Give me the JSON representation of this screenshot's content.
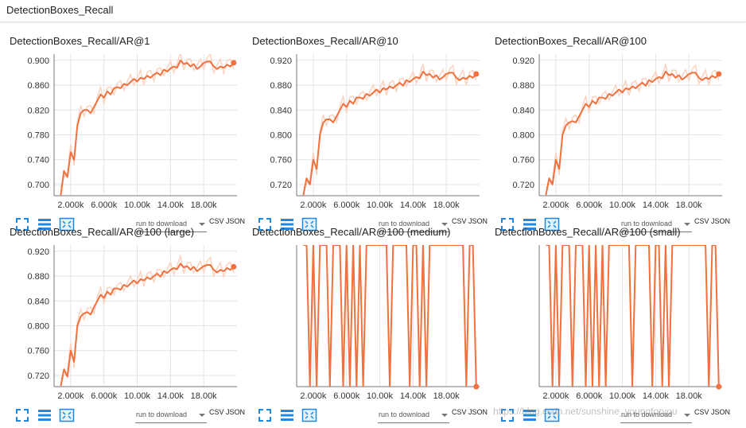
{
  "page": {
    "title": "DetectionBoxes_Recall"
  },
  "toolbar": {
    "run_select_label": "run to download",
    "csv_label": "CSV",
    "json_label": "JSON",
    "icons": [
      "fullscreen-icon",
      "toggle-log-icon",
      "fit-domain-icon"
    ]
  },
  "colors": {
    "line": "#f0713d",
    "smooth_line": "#fbd3c2",
    "grid": "#e3e3e3",
    "axis": "#777777"
  },
  "watermark": "https://blog.csdn.net/sunshine_youngforyou",
  "cards": [
    {
      "title": "DetectionBoxes_Recall/AR@1",
      "yticks": [
        "0.700",
        "0.740",
        "0.780",
        "0.820",
        "0.860",
        "0.900"
      ],
      "xticks": [
        "2.000k",
        "6.000k",
        "10.00k",
        "14.00k",
        "18.00k"
      ]
    },
    {
      "title": "DetectionBoxes_Recall/AR@10",
      "yticks": [
        "0.720",
        "0.760",
        "0.800",
        "0.840",
        "0.880",
        "0.920"
      ],
      "xticks": [
        "2.000k",
        "6.000k",
        "10.00k",
        "14.00k",
        "18.00k"
      ]
    },
    {
      "title": "DetectionBoxes_Recall/AR@100",
      "yticks": [
        "0.720",
        "0.760",
        "0.800",
        "0.840",
        "0.880",
        "0.920"
      ],
      "xticks": [
        "2.000k",
        "6.000k",
        "10.00k",
        "14.00k",
        "18.00k"
      ]
    },
    {
      "title": "DetectionBoxes_Recall/AR@100 (large)",
      "yticks": [
        "0.720",
        "0.760",
        "0.800",
        "0.840",
        "0.880",
        "0.920"
      ],
      "xticks": [
        "2.000k",
        "6.000k",
        "10.00k",
        "14.00k",
        "18.00k"
      ]
    },
    {
      "title": "DetectionBoxes_Recall/AR@100 (medium)",
      "yticks": [],
      "xticks": [
        "2.000k",
        "6.000k",
        "10.00k",
        "14.00k",
        "18.00k"
      ]
    },
    {
      "title": "DetectionBoxes_Recall/AR@100 (small)",
      "yticks": [],
      "xticks": [
        "2.000k",
        "6.000k",
        "10.00k",
        "14.00k",
        "18.00k"
      ]
    }
  ],
  "chart_data": [
    {
      "type": "line",
      "title": "DetectionBoxes_Recall/AR@1",
      "xlim": [
        0,
        22000
      ],
      "ylim": [
        0.682,
        0.91
      ],
      "x": [
        800,
        1200,
        1600,
        2000,
        2400,
        2800,
        3200,
        3600,
        4000,
        4400,
        4800,
        5200,
        5600,
        6000,
        6400,
        6800,
        7200,
        7600,
        8000,
        8400,
        8800,
        9200,
        9600,
        10000,
        10400,
        10800,
        11200,
        11600,
        12000,
        12400,
        12800,
        13200,
        13600,
        14000,
        14400,
        14800,
        15200,
        15600,
        16000,
        16400,
        16800,
        17200,
        17600,
        18000,
        18400,
        18800,
        19200,
        19600,
        20000,
        20400,
        20800,
        21200,
        21600
      ],
      "y": [
        0.683,
        0.722,
        0.712,
        0.752,
        0.74,
        0.795,
        0.815,
        0.82,
        0.82,
        0.815,
        0.825,
        0.835,
        0.845,
        0.84,
        0.85,
        0.845,
        0.855,
        0.857,
        0.855,
        0.862,
        0.86,
        0.865,
        0.87,
        0.866,
        0.872,
        0.87,
        0.875,
        0.872,
        0.877,
        0.88,
        0.876,
        0.885,
        0.882,
        0.887,
        0.89,
        0.888,
        0.9,
        0.894,
        0.896,
        0.89,
        0.894,
        0.886,
        0.89,
        0.896,
        0.898,
        0.898,
        0.89,
        0.886,
        0.89,
        0.888,
        0.893,
        0.89,
        0.896
      ]
    },
    {
      "type": "line",
      "title": "DetectionBoxes_Recall/AR@10",
      "xlim": [
        0,
        22000
      ],
      "ylim": [
        0.702,
        0.93
      ],
      "x": [
        800,
        1200,
        1600,
        2000,
        2400,
        2800,
        3200,
        3600,
        4000,
        4400,
        4800,
        5200,
        5600,
        6000,
        6400,
        6800,
        7200,
        7600,
        8000,
        8400,
        8800,
        9200,
        9600,
        10000,
        10400,
        10800,
        11200,
        11600,
        12000,
        12400,
        12800,
        13200,
        13600,
        14000,
        14400,
        14800,
        15200,
        15600,
        16000,
        16400,
        16800,
        17200,
        17600,
        18000,
        18400,
        18800,
        19200,
        19600,
        20000,
        20400,
        20800,
        21200,
        21600
      ],
      "y": [
        0.703,
        0.73,
        0.72,
        0.76,
        0.745,
        0.8,
        0.82,
        0.825,
        0.825,
        0.82,
        0.83,
        0.84,
        0.85,
        0.845,
        0.855,
        0.85,
        0.86,
        0.86,
        0.858,
        0.866,
        0.863,
        0.868,
        0.873,
        0.868,
        0.875,
        0.873,
        0.878,
        0.875,
        0.88,
        0.884,
        0.879,
        0.888,
        0.885,
        0.89,
        0.893,
        0.891,
        0.902,
        0.896,
        0.898,
        0.892,
        0.896,
        0.889,
        0.893,
        0.898,
        0.9,
        0.9,
        0.892,
        0.888,
        0.892,
        0.89,
        0.895,
        0.892,
        0.898
      ]
    },
    {
      "type": "line",
      "title": "DetectionBoxes_Recall/AR@100",
      "xlim": [
        0,
        22000
      ],
      "ylim": [
        0.702,
        0.93
      ],
      "x": [
        800,
        1200,
        1600,
        2000,
        2400,
        2800,
        3200,
        3600,
        4000,
        4400,
        4800,
        5200,
        5600,
        6000,
        6400,
        6800,
        7200,
        7600,
        8000,
        8400,
        8800,
        9200,
        9600,
        10000,
        10400,
        10800,
        11200,
        11600,
        12000,
        12400,
        12800,
        13200,
        13600,
        14000,
        14400,
        14800,
        15200,
        15600,
        16000,
        16400,
        16800,
        17200,
        17600,
        18000,
        18400,
        18800,
        19200,
        19600,
        20000,
        20400,
        20800,
        21200,
        21600
      ],
      "y": [
        0.703,
        0.73,
        0.72,
        0.76,
        0.745,
        0.8,
        0.815,
        0.82,
        0.822,
        0.82,
        0.83,
        0.84,
        0.85,
        0.845,
        0.855,
        0.85,
        0.86,
        0.86,
        0.858,
        0.866,
        0.863,
        0.868,
        0.873,
        0.868,
        0.875,
        0.873,
        0.878,
        0.875,
        0.88,
        0.884,
        0.879,
        0.888,
        0.885,
        0.89,
        0.893,
        0.891,
        0.902,
        0.896,
        0.898,
        0.892,
        0.896,
        0.889,
        0.893,
        0.898,
        0.9,
        0.9,
        0.892,
        0.888,
        0.892,
        0.89,
        0.895,
        0.892,
        0.898
      ]
    },
    {
      "type": "line",
      "title": "DetectionBoxes_Recall/AR@100 (large)",
      "xlim": [
        0,
        22000
      ],
      "ylim": [
        0.702,
        0.93
      ],
      "x": [
        800,
        1200,
        1600,
        2000,
        2400,
        2800,
        3200,
        3600,
        4000,
        4400,
        4800,
        5200,
        5600,
        6000,
        6400,
        6800,
        7200,
        7600,
        8000,
        8400,
        8800,
        9200,
        9600,
        10000,
        10400,
        10800,
        11200,
        11600,
        12000,
        12400,
        12800,
        13200,
        13600,
        14000,
        14400,
        14800,
        15200,
        15600,
        16000,
        16400,
        16800,
        17200,
        17600,
        18000,
        18400,
        18800,
        19200,
        19600,
        20000,
        20400,
        20800,
        21200,
        21600
      ],
      "y": [
        0.703,
        0.73,
        0.718,
        0.76,
        0.742,
        0.8,
        0.815,
        0.82,
        0.822,
        0.818,
        0.83,
        0.84,
        0.85,
        0.845,
        0.855,
        0.85,
        0.86,
        0.86,
        0.858,
        0.866,
        0.863,
        0.868,
        0.873,
        0.868,
        0.875,
        0.873,
        0.878,
        0.875,
        0.88,
        0.884,
        0.879,
        0.888,
        0.885,
        0.89,
        0.893,
        0.891,
        0.9,
        0.894,
        0.896,
        0.89,
        0.895,
        0.888,
        0.892,
        0.896,
        0.898,
        0.898,
        0.89,
        0.886,
        0.89,
        0.888,
        0.893,
        0.89,
        0.895
      ]
    },
    {
      "type": "line",
      "title": "DetectionBoxes_Recall/AR@100 (medium)",
      "xlim": [
        0,
        22000
      ],
      "ylim": [
        0,
        1
      ],
      "x": [
        800,
        1200,
        1600,
        2000,
        2400,
        2800,
        3200,
        3600,
        4000,
        4400,
        4800,
        5200,
        5600,
        6000,
        6400,
        6800,
        7200,
        7600,
        8000,
        8400,
        8800,
        9200,
        9600,
        10000,
        10400,
        10800,
        11200,
        11600,
        12000,
        12400,
        12800,
        13200,
        13600,
        14000,
        14400,
        14800,
        15200,
        15600,
        16000,
        16400,
        16800,
        17200,
        17600,
        18000,
        18400,
        18800,
        19200,
        19600,
        20000,
        20400,
        20800,
        21200,
        21600
      ],
      "y": [
        1,
        1,
        0,
        1,
        0,
        1,
        1,
        1,
        0,
        1,
        1,
        1,
        0,
        1,
        0,
        1,
        0,
        1,
        0,
        1,
        1,
        1,
        1,
        1,
        1,
        1,
        0,
        1,
        1,
        1,
        1,
        1,
        0,
        1,
        1,
        0,
        1,
        0,
        1,
        1,
        1,
        1,
        1,
        1,
        1,
        1,
        1,
        1,
        1,
        0,
        1,
        1,
        0
      ]
    },
    {
      "type": "line",
      "title": "DetectionBoxes_Recall/AR@100 (small)",
      "xlim": [
        0,
        22000
      ],
      "ylim": [
        0,
        1
      ],
      "x": [
        800,
        1200,
        1600,
        2000,
        2400,
        2800,
        3200,
        3600,
        4000,
        4400,
        4800,
        5200,
        5600,
        6000,
        6400,
        6800,
        7200,
        7600,
        8000,
        8400,
        8800,
        9200,
        9600,
        10000,
        10400,
        10800,
        11200,
        11600,
        12000,
        12400,
        12800,
        13200,
        13600,
        14000,
        14400,
        14800,
        15200,
        15600,
        16000,
        16400,
        16800,
        17200,
        17600,
        18000,
        18400,
        18800,
        19200,
        19600,
        20000,
        20400,
        20800,
        21200,
        21600
      ],
      "y": [
        1,
        1,
        0,
        1,
        0,
        1,
        1,
        1,
        0,
        1,
        1,
        1,
        0,
        1,
        0,
        1,
        0,
        1,
        0,
        1,
        1,
        1,
        1,
        1,
        1,
        1,
        0,
        1,
        1,
        1,
        1,
        1,
        0,
        1,
        1,
        0,
        1,
        0,
        1,
        1,
        1,
        1,
        1,
        1,
        1,
        1,
        1,
        1,
        1,
        0,
        1,
        1,
        0
      ]
    }
  ]
}
